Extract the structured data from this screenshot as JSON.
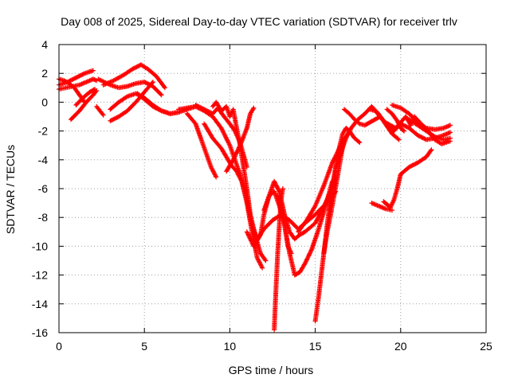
{
  "chart_data": {
    "type": "scatter",
    "title": "Day 008 of 2025, Sidereal Day-to-day VTEC variation (SDTVAR) for receiver trlv",
    "xlabel": "GPS time / hours",
    "ylabel": "SDTVAR / TECUs",
    "xlim": [
      0,
      25
    ],
    "ylim": [
      -16,
      4
    ],
    "x_ticks": [
      0,
      5,
      10,
      15,
      20,
      25
    ],
    "y_ticks": [
      -16,
      -14,
      -12,
      -10,
      -8,
      -6,
      -4,
      -2,
      0,
      2,
      4
    ],
    "grid": true,
    "marker": "+",
    "color": "#ff0000",
    "series": [
      {
        "x": [
          0.0,
          0.5,
          1.0,
          1.5,
          2.0
        ],
        "y": [
          1.2,
          1.4,
          1.7,
          2.0,
          2.2
        ]
      },
      {
        "x": [
          0.0,
          0.4,
          0.8,
          1.2,
          1.6,
          2.0,
          2.2
        ],
        "y": [
          0.9,
          1.0,
          1.1,
          1.2,
          1.4,
          1.6,
          1.5
        ]
      },
      {
        "x": [
          0.0,
          0.3,
          0.6,
          0.9,
          1.2,
          1.5
        ],
        "y": [
          1.6,
          1.5,
          1.3,
          1.0,
          0.5,
          0.0
        ]
      },
      {
        "x": [
          0.7,
          1.2,
          1.6,
          2.0,
          2.2
        ],
        "y": [
          -1.2,
          -0.6,
          0.0,
          0.5,
          0.8
        ]
      },
      {
        "x": [
          1.0,
          1.4,
          1.8,
          2.1
        ],
        "y": [
          -0.2,
          0.3,
          0.7,
          0.9
        ]
      },
      {
        "x": [
          2.2,
          2.4,
          2.6
        ],
        "y": [
          -0.3,
          -0.6,
          -0.9
        ]
      },
      {
        "x": [
          2.3,
          3.0,
          3.5,
          4.0,
          4.5,
          5.0,
          5.5,
          6.0
        ],
        "y": [
          1.6,
          1.2,
          1.0,
          1.1,
          1.3,
          1.4,
          1.1,
          0.5
        ]
      },
      {
        "x": [
          3.0,
          3.5,
          4.0,
          4.5,
          5.0,
          5.5,
          6.0,
          6.5,
          7.0
        ],
        "y": [
          -0.5,
          0.0,
          0.4,
          0.6,
          0.3,
          -0.2,
          -0.6,
          -0.8,
          -0.7
        ]
      },
      {
        "x": [
          2.6,
          3.2,
          3.8,
          4.3,
          4.8,
          5.2,
          5.7,
          6.2
        ],
        "y": [
          1.2,
          1.5,
          1.9,
          2.3,
          2.6,
          2.3,
          1.8,
          1.0
        ]
      },
      {
        "x": [
          3.0,
          3.5,
          4.0,
          4.5,
          5.0,
          5.5
        ],
        "y": [
          -1.3,
          -1.0,
          -0.6,
          0.0,
          0.7,
          1.4
        ]
      },
      {
        "x": [
          4.6,
          5.0,
          5.5,
          6.0,
          6.5,
          7.0,
          7.5,
          8.0
        ],
        "y": [
          0.6,
          0.2,
          -0.3,
          -0.6,
          -0.8,
          -0.7,
          -0.5,
          -0.3
        ]
      },
      {
        "x": [
          7.0,
          7.5,
          8.0,
          8.5,
          9.0,
          9.5,
          10.0,
          10.3,
          10.6,
          11.0,
          11.3,
          11.6,
          12.0,
          12.5,
          13.0,
          13.5,
          14.0,
          14.5,
          15.0,
          15.5,
          16.0,
          16.2
        ],
        "y": [
          -0.5,
          -0.4,
          -0.3,
          -0.6,
          -1.0,
          -1.8,
          -3.0,
          -4.0,
          -5.0,
          -6.8,
          -8.5,
          -9.5,
          -8.8,
          -8.2,
          -7.8,
          -8.2,
          -8.8,
          -8.3,
          -7.8,
          -7.2,
          -6.5,
          -6.2
        ]
      },
      {
        "x": [
          7.5,
          8.0,
          8.3,
          8.6,
          8.9,
          9.2
        ],
        "y": [
          -0.8,
          -1.5,
          -2.5,
          -3.5,
          -4.5,
          -5.2
        ]
      },
      {
        "x": [
          8.0,
          8.5,
          9.0,
          9.3,
          9.6,
          10.0,
          10.3,
          10.6,
          11.0
        ],
        "y": [
          -0.2,
          -0.5,
          -0.8,
          -0.4,
          -0.9,
          -1.5,
          -2.0,
          -2.8,
          -4.5
        ]
      },
      {
        "x": [
          8.5,
          9.0,
          9.5,
          9.8,
          10.1,
          10.4,
          10.7,
          11.0,
          11.3,
          11.6,
          11.9
        ],
        "y": [
          -1.5,
          -2.5,
          -3.2,
          -3.8,
          -4.4,
          -4.8,
          -5.5,
          -7.0,
          -9.0,
          -10.8,
          -11.5
        ]
      },
      {
        "x": [
          9.0,
          9.2,
          9.5,
          9.8,
          10.0,
          10.2,
          10.4,
          10.6,
          10.8,
          11.0,
          11.2,
          11.5,
          11.8,
          12.1
        ],
        "y": [
          -0.3,
          0.0,
          -0.6,
          -0.3,
          -1.0,
          -0.5,
          -1.8,
          -3.0,
          -4.5,
          -6.0,
          -7.8,
          -9.3,
          -10.5,
          -11.0
        ]
      },
      {
        "x": [
          9.8,
          10.2,
          10.6,
          11.0,
          11.2,
          11.4
        ],
        "y": [
          -4.8,
          -4.0,
          -3.0,
          -1.8,
          -0.8,
          -0.4
        ]
      },
      {
        "x": [
          11.0,
          11.4,
          11.8,
          12.0,
          12.3,
          12.6,
          12.9,
          13.2,
          13.5,
          13.8,
          14.1,
          14.4,
          14.7,
          15.0,
          15.4,
          15.8,
          16.2
        ],
        "y": [
          -9.0,
          -10.0,
          -9.2,
          -7.8,
          -6.5,
          -5.5,
          -6.2,
          -7.8,
          -9.0,
          -9.5,
          -9.2,
          -9.0,
          -8.7,
          -8.4,
          -7.5,
          -6.5,
          -5.2
        ]
      },
      {
        "x": [
          12.0,
          12.3,
          12.6,
          12.9,
          13.2,
          13.5,
          13.8,
          14.1,
          14.4,
          14.8,
          15.2,
          15.6,
          16.0
        ],
        "y": [
          -7.5,
          -6.5,
          -6.2,
          -7.2,
          -8.5,
          -10.5,
          -12.0,
          -11.8,
          -11.2,
          -10.2,
          -8.8,
          -7.2,
          -5.5
        ]
      },
      {
        "x": [
          12.8,
          13.0,
          13.2,
          13.4,
          13.6
        ],
        "y": [
          -6.5,
          -7.5,
          -8.5,
          -10.0,
          -10.5
        ]
      },
      {
        "x": [
          12.6,
          12.7,
          12.8,
          12.9,
          13.0,
          13.1
        ],
        "y": [
          -15.8,
          -13.0,
          -10.5,
          -8.5,
          -6.8,
          -6.0
        ]
      },
      {
        "x": [
          14.0,
          14.5,
          15.0,
          15.5,
          16.0,
          16.5,
          17.0
        ],
        "y": [
          -9.0,
          -8.2,
          -7.2,
          -5.8,
          -4.2,
          -3.0,
          -2.0
        ]
      },
      {
        "x": [
          15.0,
          15.2,
          15.4,
          15.6,
          15.8,
          16.0,
          16.2
        ],
        "y": [
          -15.2,
          -13.5,
          -11.5,
          -9.5,
          -7.5,
          -5.8,
          -4.5
        ]
      },
      {
        "x": [
          15.5,
          15.7,
          15.9,
          16.1,
          16.3,
          16.5,
          16.7
        ],
        "y": [
          -10.5,
          -9.0,
          -7.8,
          -6.5,
          -5.2,
          -3.8,
          -2.5
        ]
      },
      {
        "x": [
          15.8,
          16.0,
          16.2,
          16.4,
          16.6,
          16.8,
          17.0,
          17.3,
          17.6
        ],
        "y": [
          -7.5,
          -6.0,
          -4.6,
          -3.2,
          -2.2,
          -1.8,
          -2.0,
          -2.5,
          -2.8
        ]
      },
      {
        "x": [
          16.2,
          16.5,
          16.8,
          17.1,
          17.5,
          17.9,
          18.3,
          18.7,
          19.1,
          19.5,
          19.9
        ],
        "y": [
          -4.5,
          -3.5,
          -2.5,
          -1.8,
          -1.2,
          -0.8,
          -0.3,
          -0.8,
          -1.5,
          -2.2,
          -2.6
        ]
      },
      {
        "x": [
          16.7,
          17.0,
          17.3,
          17.6,
          17.9,
          18.2,
          18.5,
          18.8,
          19.2,
          19.6,
          20.0
        ],
        "y": [
          -0.5,
          -0.8,
          -1.2,
          -1.5,
          -1.6,
          -1.4,
          -1.2,
          -1.0,
          -1.6,
          -2.0,
          -1.5
        ]
      },
      {
        "x": [
          18.2,
          18.5,
          18.8,
          19.1,
          19.4,
          19.7,
          20.0,
          20.3,
          20.6
        ],
        "y": [
          -0.5,
          -0.6,
          -1.0,
          -1.4,
          -1.6,
          -1.8,
          -1.4,
          -1.0,
          -1.6
        ]
      },
      {
        "x": [
          19.2,
          19.5,
          19.8,
          20.0,
          20.2
        ],
        "y": [
          -0.5,
          -0.8,
          -1.3,
          -1.8,
          -2.0
        ]
      },
      {
        "x": [
          19.5,
          20.0,
          20.5,
          21.0,
          21.5,
          22.0,
          22.5,
          22.9
        ],
        "y": [
          -0.2,
          -0.4,
          -0.8,
          -1.4,
          -1.8,
          -1.9,
          -1.8,
          -1.6
        ]
      },
      {
        "x": [
          20.0,
          20.5,
          21.0,
          21.5,
          22.0,
          22.5,
          22.9
        ],
        "y": [
          -1.5,
          -1.8,
          -2.3,
          -2.6,
          -2.5,
          -2.3,
          -2.1
        ]
      },
      {
        "x": [
          20.5,
          21.0,
          21.5,
          22.0,
          22.5,
          22.9
        ],
        "y": [
          -1.2,
          -1.6,
          -2.0,
          -2.4,
          -2.6,
          -2.5
        ]
      },
      {
        "x": [
          20.8,
          21.2,
          21.6,
          22.0,
          22.4,
          22.9
        ],
        "y": [
          -1.0,
          -1.5,
          -2.0,
          -2.6,
          -2.9,
          -2.7
        ]
      },
      {
        "x": [
          19.0,
          19.2,
          19.4,
          19.6,
          19.8,
          20.0,
          20.5,
          21.0,
          21.5,
          21.8
        ],
        "y": [
          -6.9,
          -7.1,
          -7.3,
          -6.8,
          -6.0,
          -5.0,
          -4.5,
          -4.2,
          -3.8,
          -3.3
        ]
      },
      {
        "x": [
          18.3,
          18.7,
          19.1,
          19.5
        ],
        "y": [
          -7.0,
          -7.2,
          -7.4,
          -7.5
        ]
      }
    ]
  }
}
